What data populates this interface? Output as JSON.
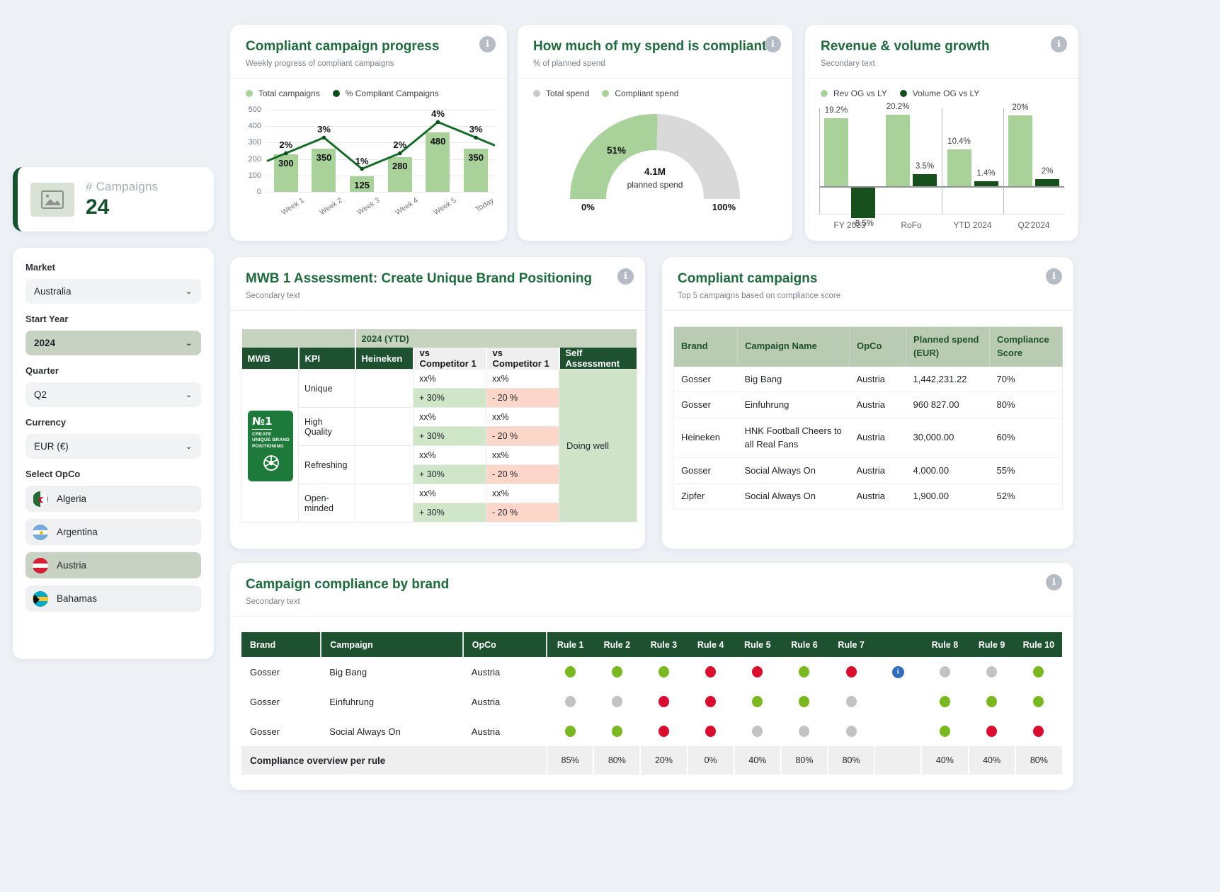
{
  "kpi_card": {
    "label": "# Campaigns",
    "value": "24"
  },
  "filters": {
    "market_label": "Market",
    "market_value": "Australia",
    "start_year_label": "Start Year",
    "start_year_value": "2024",
    "quarter_label": "Quarter",
    "quarter_value": "Q2",
    "currency_label": "Currency",
    "currency_value": "EUR (€)",
    "opco_label": "Select OpCo",
    "opcos": [
      {
        "name": "Algeria",
        "flag": "algeria",
        "selected": false
      },
      {
        "name": "Argentina",
        "flag": "argentina",
        "selected": false
      },
      {
        "name": "Austria",
        "flag": "austria",
        "selected": true
      },
      {
        "name": "Bahamas",
        "flag": "bahamas",
        "selected": false
      }
    ]
  },
  "progress_card": {
    "title": "Compliant campaign progress",
    "subtitle": "Weekly progress of compliant campaigns",
    "legend": [
      {
        "label": "Total campaigns",
        "color": "#a9d29b"
      },
      {
        "label": "% Compliant Campaigns",
        "color": "#0d4f1c"
      }
    ]
  },
  "gauge_card": {
    "title": "How much of my spend is compliant?",
    "subtitle": "% of planned spend",
    "legend": [
      {
        "label": "Total spend",
        "color": "#c9c9c9"
      },
      {
        "label": "Compliant spend",
        "color": "#a9d29b"
      }
    ]
  },
  "revenue_card": {
    "title": "Revenue & volume growth",
    "subtitle": "Secondary text",
    "legend": [
      {
        "label": "Rev OG vs LY",
        "color": "#a9d29b"
      },
      {
        "label": "Volume OG vs LY",
        "color": "#174f1d"
      }
    ]
  },
  "chart_data": [
    {
      "type": "bar+line",
      "title": "Compliant campaign progress",
      "categories": [
        "Week 1",
        "Week 2",
        "Week 3",
        "Week 4",
        "Week 5",
        "Today"
      ],
      "series": [
        {
          "name": "Total campaigns",
          "type": "bar",
          "values": [
            300,
            350,
            125,
            280,
            480,
            350
          ]
        },
        {
          "name": "% Compliant Campaigns",
          "type": "line",
          "values": [
            2,
            3,
            1,
            2,
            4,
            3
          ],
          "labels": [
            "2%",
            "3%",
            "1%",
            "2%",
            "4%",
            "3%"
          ]
        }
      ],
      "ylim": [
        0,
        500
      ],
      "yticks": [
        500,
        400,
        300,
        200,
        100,
        0
      ],
      "grid": true,
      "legend_position": "top"
    },
    {
      "type": "gauge",
      "title": "How much of my spend is compliant?",
      "value_pct": 51,
      "value_label": "51%",
      "min_label": "0%",
      "max_label": "100%",
      "center_value": "4.1M",
      "center_label": "planned spend",
      "colors": {
        "compliant": "#a9d29b",
        "total": "#d9d9d9"
      }
    },
    {
      "type": "bar",
      "title": "Revenue & volume growth",
      "categories": [
        "FY 2023",
        "RoFo",
        "YTD 2024",
        "Q2'2024"
      ],
      "series": [
        {
          "name": "Rev OG vs LY",
          "values": [
            19.2,
            20.2,
            10.4,
            20
          ],
          "labels": [
            "19.2%",
            "20.2%",
            "10.4%",
            "20%"
          ]
        },
        {
          "name": "Volume OG vs LY",
          "values": [
            -8.5,
            3.5,
            1.4,
            2
          ],
          "labels": [
            "-8.5%",
            "3.5%",
            "1.4%",
            "2%"
          ]
        }
      ]
    }
  ],
  "mwb_card": {
    "title": "MWB 1 Assessment: Create Unique Brand Positioning",
    "subtitle": "Secondary text",
    "period_band": "2024 (YTD)",
    "columns": [
      "MWB",
      "KPI",
      "Heineken",
      "vs Competitor 1",
      "vs Competitor 1",
      "Self Assessment"
    ],
    "badge": {
      "number": "№1",
      "text": "CREATE UNIQUE BRAND POSITIONING"
    },
    "kpis": [
      {
        "name": "Unique",
        "heineken": "",
        "vs1": "xx%",
        "vs2": "xx%",
        "vs1_delta": "+ 30%",
        "vs2_delta": "- 20 %"
      },
      {
        "name": "High Quality",
        "heineken": "",
        "vs1": "xx%",
        "vs2": "xx%",
        "vs1_delta": "+ 30%",
        "vs2_delta": "- 20 %"
      },
      {
        "name": "Refreshing",
        "heineken": "",
        "vs1": "xx%",
        "vs2": "xx%",
        "vs1_delta": "+ 30%",
        "vs2_delta": "- 20 %"
      },
      {
        "name": "Open-minded",
        "heineken": "",
        "vs1": "xx%",
        "vs2": "xx%",
        "vs1_delta": "+ 30%",
        "vs2_delta": "- 20 %"
      }
    ],
    "self_assessment": "Doing well"
  },
  "top5_card": {
    "title": "Compliant campaigns",
    "subtitle": "Top 5 campaigns based on compliance score",
    "columns": [
      "Brand",
      "Campaign Name",
      "OpCo",
      "Planned spend (EUR)",
      "Compliance Score"
    ],
    "rows": [
      {
        "brand": "Gosser",
        "campaign": "Big Bang",
        "opco": "Austria",
        "spend": "1,442,231.22",
        "score": "70%"
      },
      {
        "brand": "Gosser",
        "campaign": "Einfuhrung",
        "opco": "Austria",
        "spend": "960 827.00",
        "score": "80%"
      },
      {
        "brand": "Heineken",
        "campaign": "HNK Football Cheers to all Real Fans",
        "opco": "Austria",
        "spend": "30,000.00",
        "score": "60%"
      },
      {
        "brand": "Gosser",
        "campaign": "Social Always On",
        "opco": "Austria",
        "spend": "4.000.00",
        "score": "55%"
      },
      {
        "brand": "Zipfer",
        "campaign": "Social Always On",
        "opco": "Austria",
        "spend": "1,900.00",
        "score": "52%"
      }
    ]
  },
  "compliance_card": {
    "title": "Campaign compliance by brand",
    "subtitle": "Secondary text",
    "fixed_columns": [
      "Brand",
      "Campaign",
      "OpCo"
    ],
    "rule_columns": [
      "Rule 1",
      "Rule 2",
      "Rule 3",
      "Rule 4",
      "Rule 5",
      "Rule 6",
      "Rule 7",
      "",
      "Rule 8",
      "Rule 9",
      "Rule 10"
    ],
    "dot_colors": {
      "green": "#7ab81f",
      "red": "#dc0c2e",
      "gray": "#c3c3c3",
      "info": "#2f6fbe"
    },
    "rows": [
      {
        "brand": "Gosser",
        "campaign": "Big Bang",
        "opco": "Austria",
        "dots": [
          "green",
          "green",
          "green",
          "red",
          "red",
          "green",
          "red",
          "info",
          "gray",
          "gray",
          "green"
        ]
      },
      {
        "brand": "Gosser",
        "campaign": "Einfuhrung",
        "opco": "Austria",
        "dots": [
          "gray",
          "gray",
          "red",
          "red",
          "green",
          "green",
          "gray",
          "",
          "green",
          "green",
          "green"
        ]
      },
      {
        "brand": "Gosser",
        "campaign": "Social Always On",
        "opco": "Austria",
        "dots": [
          "green",
          "green",
          "red",
          "red",
          "gray",
          "gray",
          "gray",
          "",
          "green",
          "red",
          "red"
        ]
      }
    ],
    "footer": {
      "label": "Compliance overview per rule",
      "values": [
        "85%",
        "80%",
        "20%",
        "0%",
        "40%",
        "80%",
        "80%",
        "",
        "40%",
        "40%",
        "80%"
      ]
    }
  }
}
